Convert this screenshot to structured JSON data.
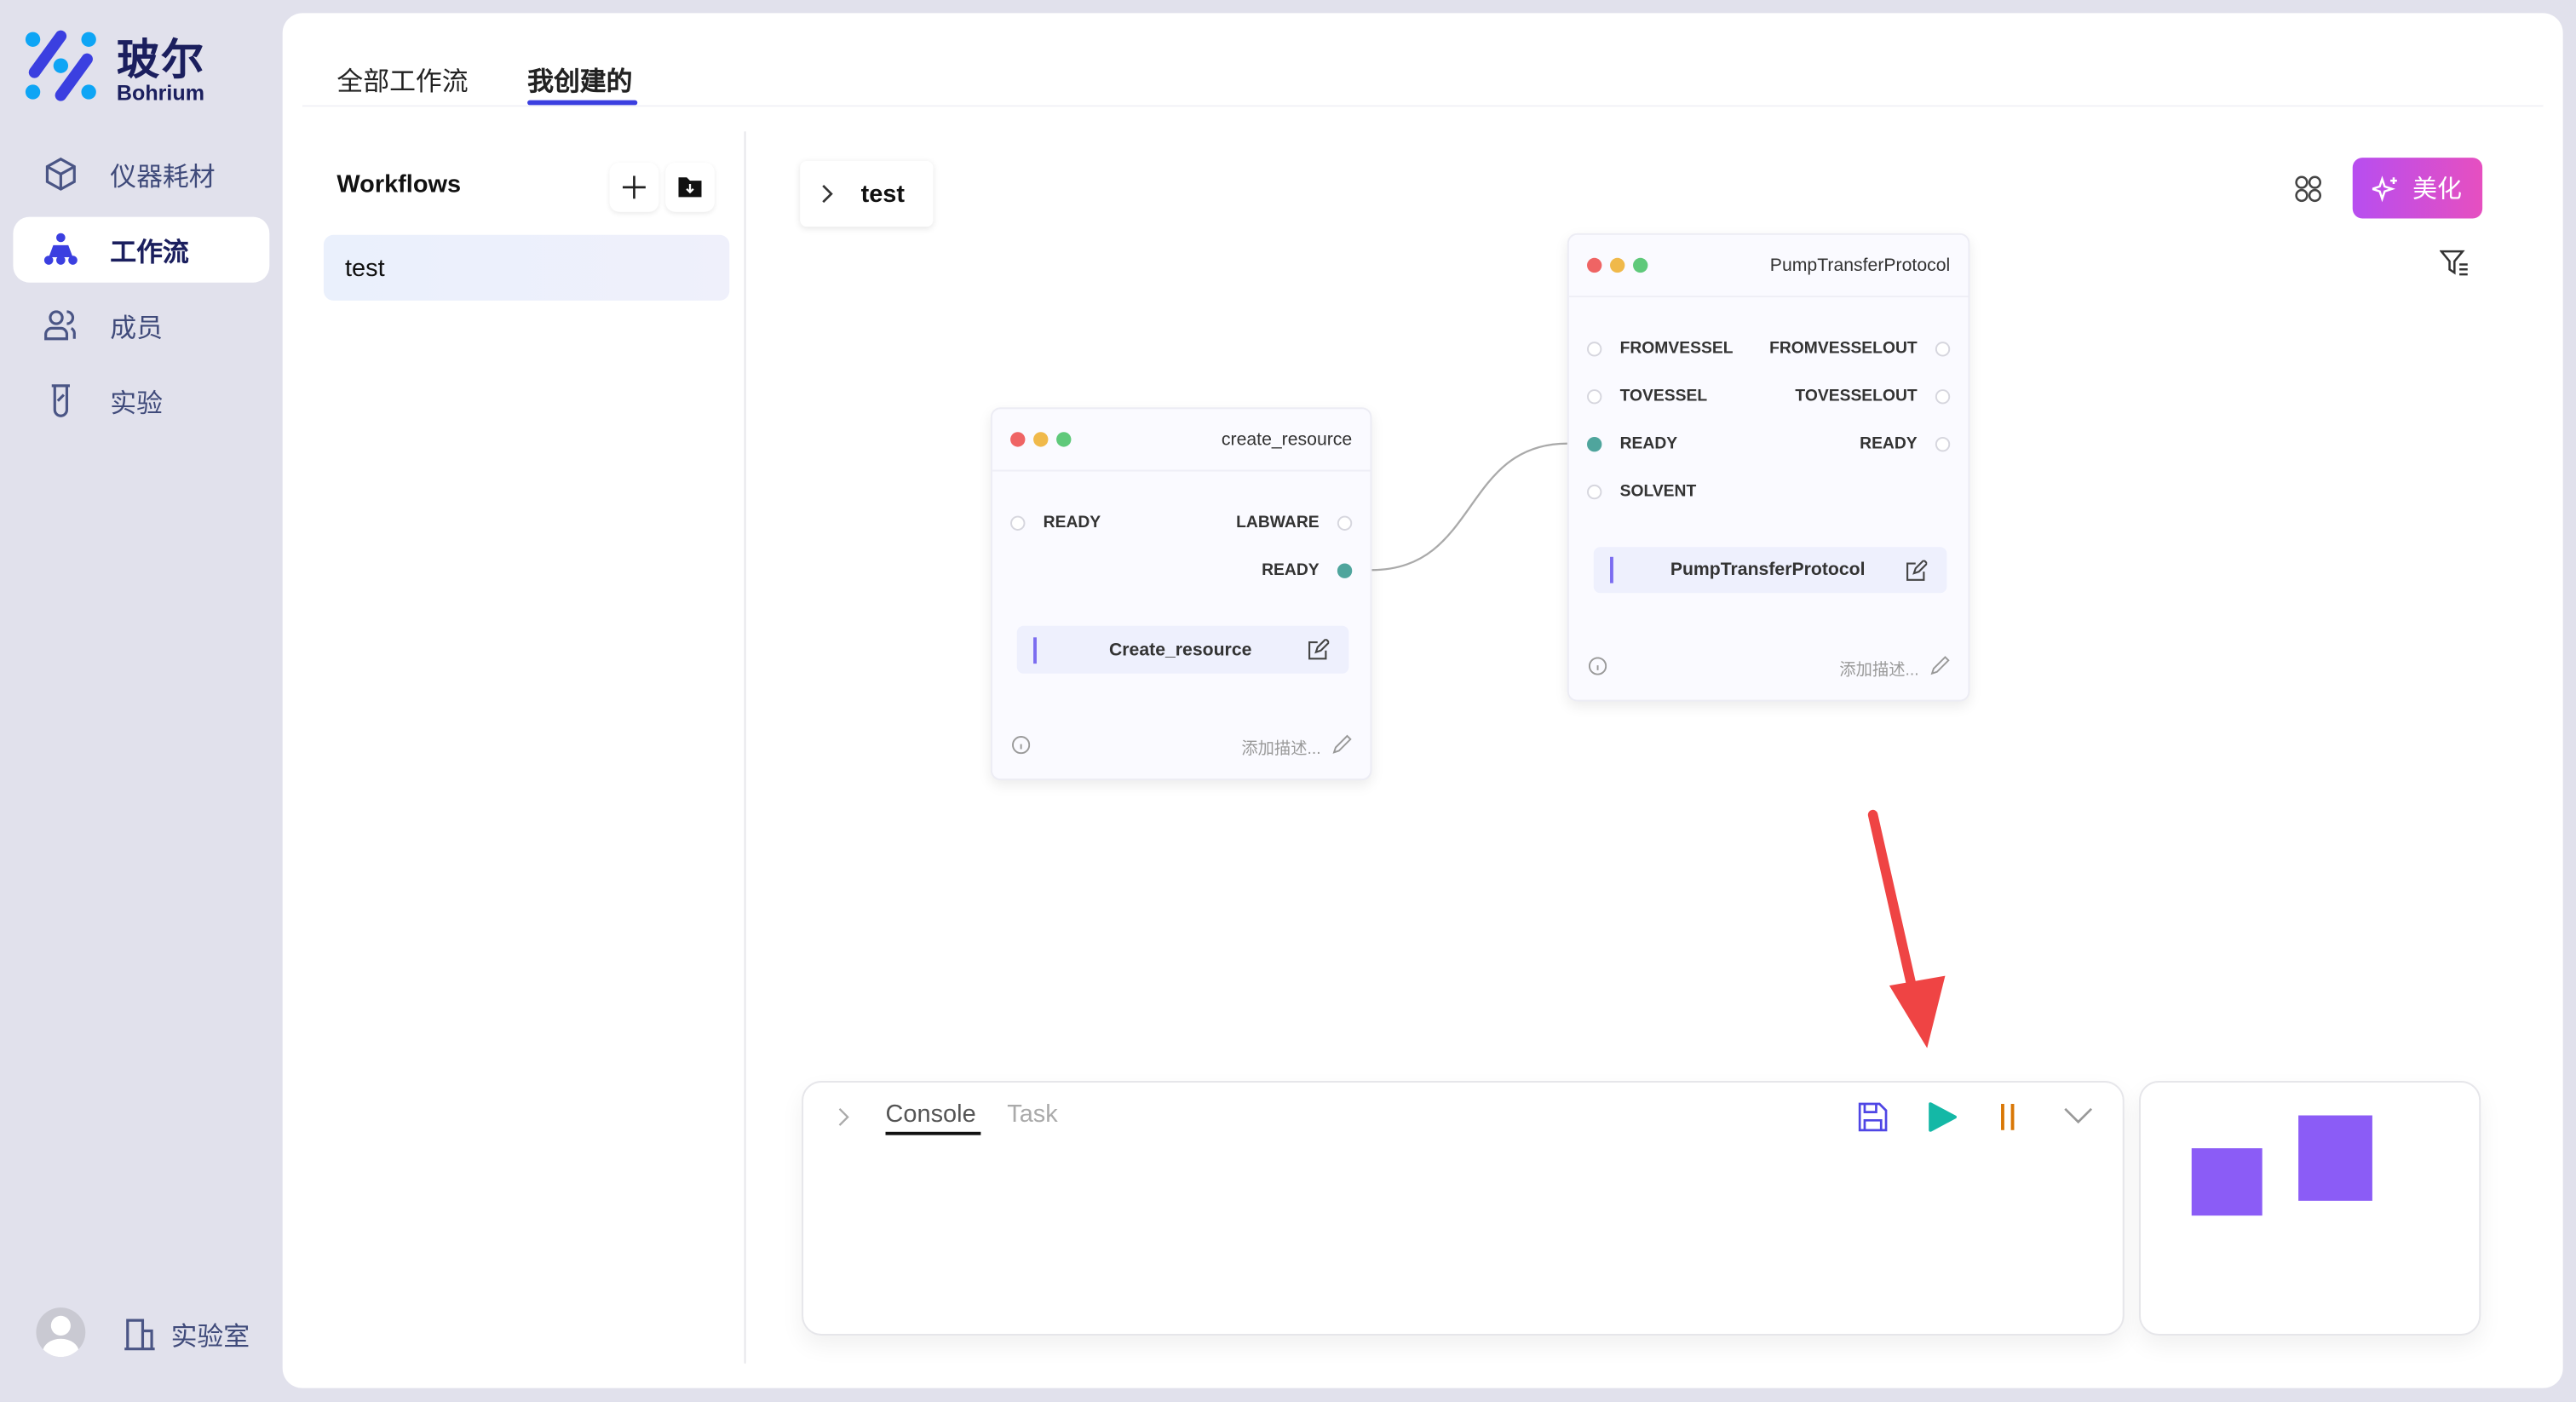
{
  "brand": {
    "name_cn": "玻尔",
    "name_en": "Bohrium"
  },
  "sidebar": {
    "items": [
      {
        "label": "仪器耗材",
        "icon": "box-icon"
      },
      {
        "label": "工作流",
        "icon": "workflow-icon",
        "active": true
      },
      {
        "label": "成员",
        "icon": "members-icon"
      },
      {
        "label": "实验",
        "icon": "test-tube-icon"
      }
    ],
    "footer": {
      "lab_label": "实验室"
    }
  },
  "tabs": [
    {
      "label": "全部工作流"
    },
    {
      "label": "我创建的",
      "active": true
    }
  ],
  "workflows": {
    "title": "Workflows",
    "items": [
      {
        "label": "test",
        "selected": true
      }
    ]
  },
  "canvas": {
    "breadcrumb": "test",
    "beautify_label": "美化",
    "nodes": [
      {
        "title": "create_resource",
        "inputs": [
          "READY"
        ],
        "outputs": [
          "LABWARE",
          "READY"
        ],
        "function": "Create_resource",
        "desc_placeholder": "添加描述..."
      },
      {
        "title": "PumpTransferProtocol",
        "inputs": [
          "FROMVESSEL",
          "TOVESSEL",
          "READY",
          "SOLVENT"
        ],
        "outputs": [
          "FROMVESSELOUT",
          "TOVESSELOUT",
          "READY"
        ],
        "function": "PumpTransferProtocol",
        "desc_placeholder": "添加描述..."
      }
    ],
    "edge": {
      "from": "create_resource.READY",
      "to": "PumpTransferProtocol.READY"
    }
  },
  "console": {
    "tabs": [
      {
        "label": "Console",
        "active": true
      },
      {
        "label": "Task"
      }
    ]
  },
  "colors": {
    "accent": "#3b3fe0",
    "play": "#14b8a6",
    "pause": "#d97706",
    "minimap": "#8b5cf6",
    "annotation_arrow": "#ef4444"
  }
}
